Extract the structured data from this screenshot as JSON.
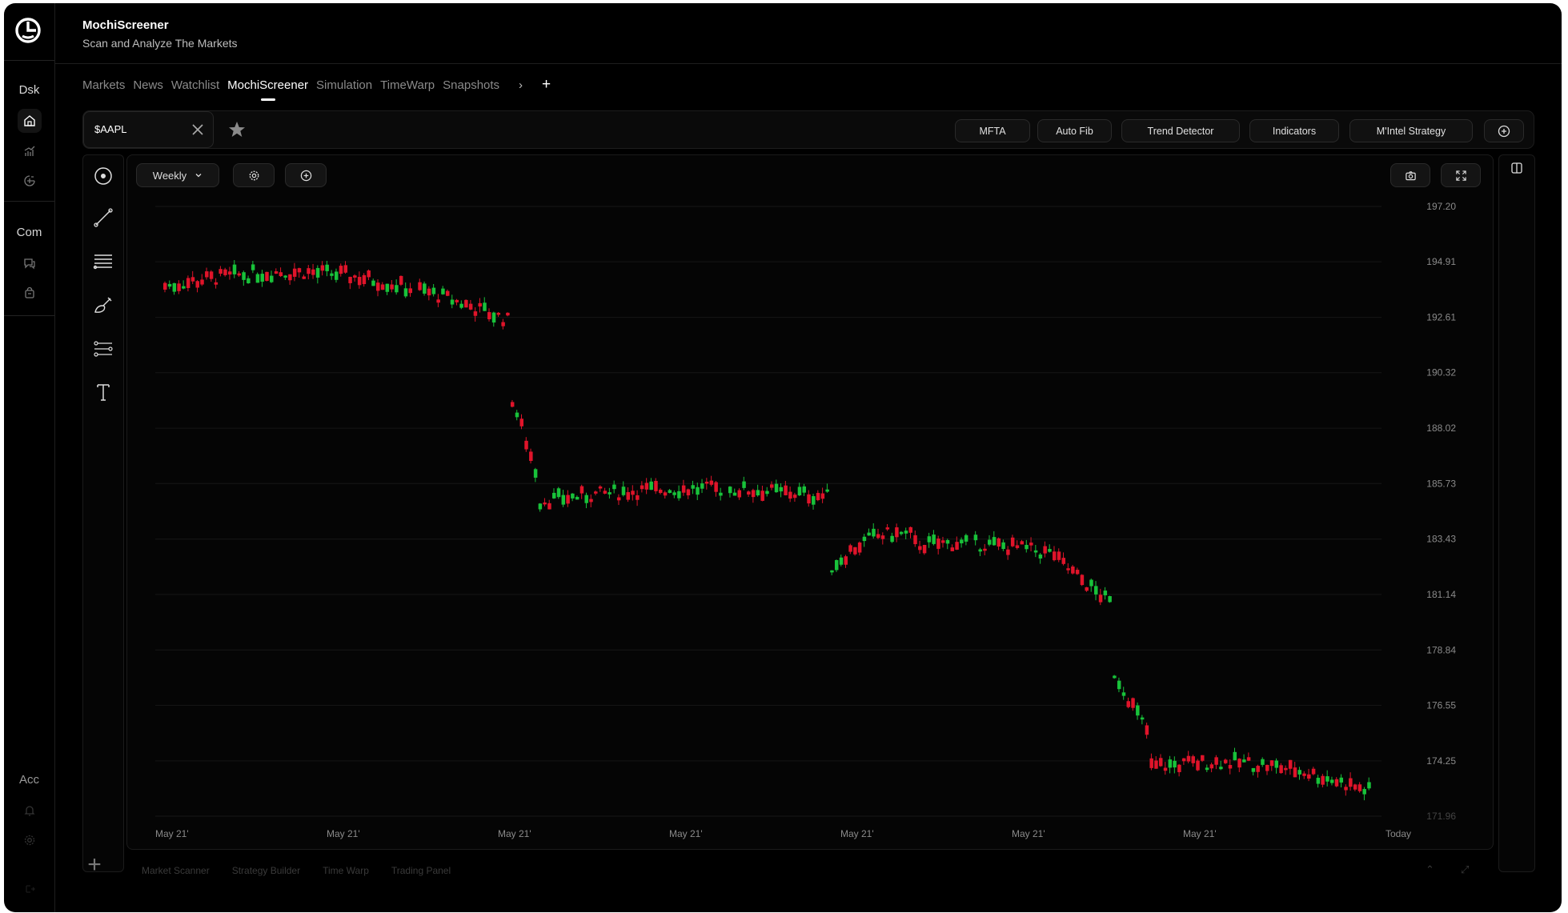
{
  "rail": {
    "sections": [
      {
        "label": "Dsk"
      },
      {
        "label": "Com"
      },
      {
        "label": "Acc"
      }
    ]
  },
  "header": {
    "title": "MochiScreener",
    "subtitle": "Scan and Analyze The Markets"
  },
  "tabs": [
    {
      "label": "Markets",
      "active": false
    },
    {
      "label": "News",
      "active": false
    },
    {
      "label": "Watchlist",
      "active": false
    },
    {
      "label": "MochiScreener",
      "active": true
    },
    {
      "label": "Simulation",
      "active": false
    },
    {
      "label": "TimeWarp",
      "active": false
    },
    {
      "label": "Snapshots",
      "active": false
    }
  ],
  "toolbar": {
    "ticker_value": "$AAPL",
    "buttons": [
      "MFTA",
      "Auto Fib",
      "Trend Detector",
      "Indicators",
      "M'Intel Strategy"
    ]
  },
  "chart_controls": {
    "interval": "Weekly"
  },
  "bottom_tabs": [
    "Market Scanner",
    "Strategy Builder",
    "Time Warp",
    "Trading Panel"
  ],
  "colors": {
    "up": "#18c23a",
    "down": "#e0142a",
    "background": "#000000",
    "panel": "#050505"
  },
  "chart_data": {
    "type": "candlestick",
    "symbol": "$AAPL",
    "interval": "Weekly",
    "y_ticks": [
      "197.20",
      "194.91",
      "192.61",
      "190.32",
      "188.02",
      "185.73",
      "183.43",
      "181.14",
      "178.84",
      "176.55",
      "174.25",
      "171.96"
    ],
    "ylim": [
      171.96,
      197.2
    ],
    "x_ticks": [
      "May 21'",
      "May 21'",
      "May 21'",
      "May 21'",
      "May 21'",
      "May 21'",
      "May 21'",
      "Today"
    ],
    "segments": [
      {
        "start_index": 0,
        "count": 74,
        "from": 193.9,
        "to": 192.5,
        "bump": 1.2
      },
      {
        "start_index": 74,
        "count": 6,
        "from": 189.2,
        "to": 186.3,
        "bump": 0
      },
      {
        "start_index": 80,
        "count": 62,
        "from": 185.0,
        "to": 185.2,
        "bump": 0.4
      },
      {
        "start_index": 142,
        "count": 18,
        "from": 182.3,
        "to": 183.6,
        "bump": 0.5
      },
      {
        "start_index": 160,
        "count": 30,
        "from": 183.2,
        "to": 182.8,
        "bump": 0.2
      },
      {
        "start_index": 190,
        "count": 12,
        "from": 182.5,
        "to": 180.8,
        "bump": 0
      },
      {
        "start_index": 202,
        "count": 8,
        "from": 177.9,
        "to": 175.5,
        "bump": 0
      },
      {
        "start_index": 210,
        "count": 48,
        "from": 174.0,
        "to": 173.0,
        "bump": 0.6
      }
    ],
    "gaps_after_index": [
      53,
      119,
      171
    ]
  }
}
